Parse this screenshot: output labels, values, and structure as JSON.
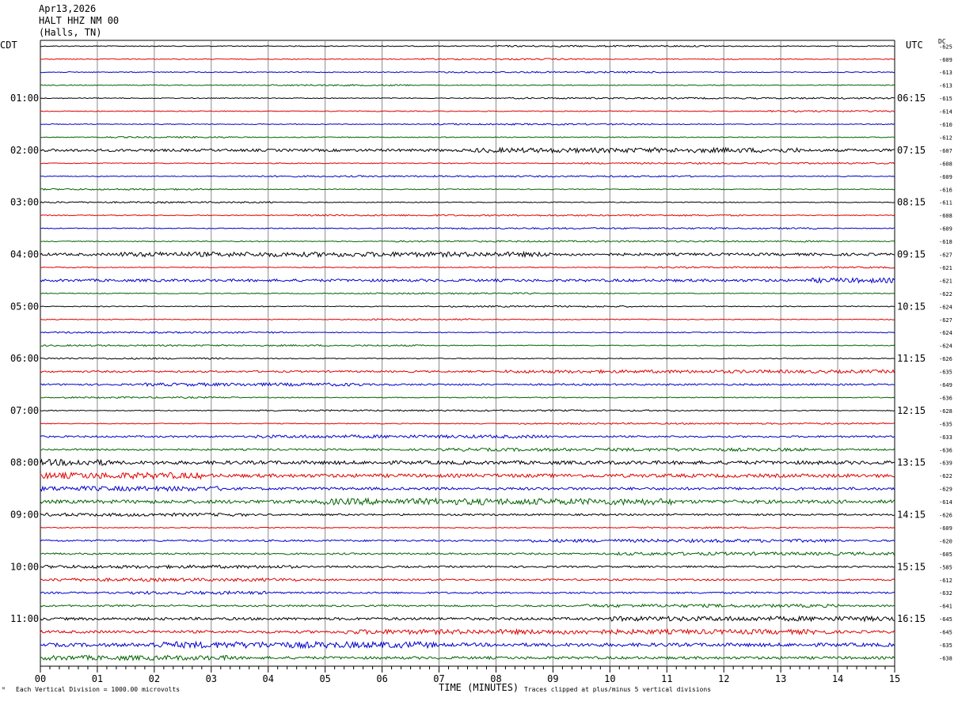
{
  "header": {
    "date": "Apr13,2026",
    "station": "HALT HHZ NM 00",
    "location": "(Halls, TN)"
  },
  "left_zone": "CDT",
  "right_zone": "UTC",
  "dc_label": "DC",
  "footer": {
    "scale_note": "Each Vertical Division = 1000.00 microvolts",
    "clip_note": "Traces clipped at plus/minus 5 vertical divisions",
    "corner_mark": "ᴹ"
  },
  "chart_data": {
    "type": "line",
    "title": "",
    "xlabel": "TIME (MINUTES)",
    "xlim": [
      0,
      15
    ],
    "x_ticks": [
      "00",
      "01",
      "02",
      "03",
      "04",
      "05",
      "06",
      "07",
      "08",
      "09",
      "10",
      "11",
      "12",
      "13",
      "14",
      "15"
    ],
    "row_minutes": 15,
    "colors": [
      "#000000",
      "#e00000",
      "#0000cc",
      "#006400"
    ],
    "left_hour_labels": [
      "01:00",
      "02:00",
      "03:00",
      "04:00",
      "05:00",
      "06:00",
      "07:00",
      "08:00",
      "09:00",
      "10:00",
      "11:00"
    ],
    "right_hour_labels": [
      "06:15",
      "07:15",
      "08:15",
      "09:15",
      "10:15",
      "11:15",
      "12:15",
      "13:15",
      "14:15",
      "15:15",
      "16:15"
    ],
    "dc_offsets": [
      "-625",
      "-609",
      "-613",
      "-613",
      "-615",
      "-614",
      "-610",
      "-612",
      "-607",
      "-608",
      "-609",
      "-616",
      "-611",
      "-608",
      "-609",
      "-618",
      "-627",
      "-621",
      "-621",
      "-622",
      "-624",
      "-627",
      "-624",
      "-624",
      "-626",
      "-635",
      "-649",
      "-636",
      "-628",
      "-635",
      "-633",
      "-636",
      "-639",
      "-622",
      "-629",
      "-614",
      "-626",
      "-609",
      "-620",
      "-605",
      "-585",
      "-612",
      "-632",
      "-641",
      "-645",
      "-645",
      "-635",
      "-638"
    ],
    "trace_activity": [
      1,
      1,
      1,
      1,
      1,
      1,
      1,
      1,
      3,
      1,
      1,
      1,
      1,
      1,
      1,
      1,
      3,
      1,
      3,
      1,
      1,
      1,
      1,
      1,
      1,
      2,
      2,
      1,
      1,
      1,
      2,
      2,
      4,
      4,
      3,
      4,
      2,
      1,
      2,
      2,
      2,
      2,
      2,
      2,
      3,
      3,
      4,
      3
    ]
  }
}
